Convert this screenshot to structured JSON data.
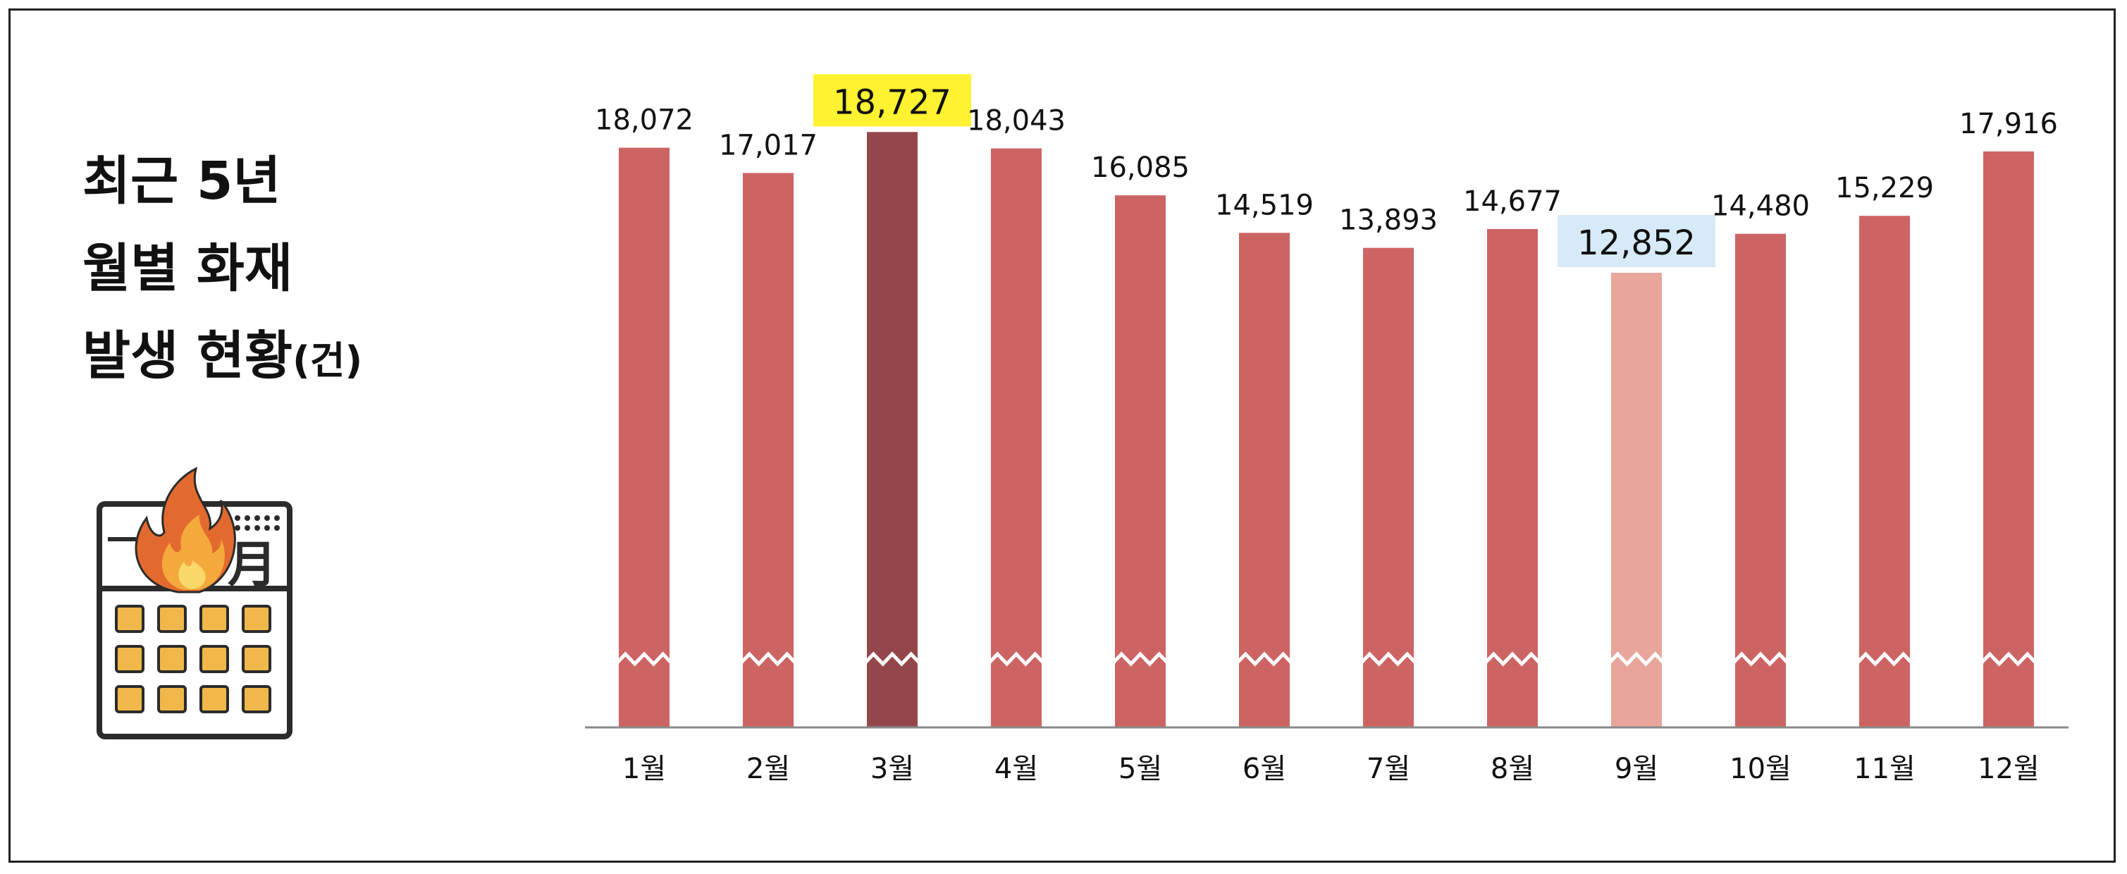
{
  "title": {
    "line1": "최근 5년",
    "line2": "월별 화재",
    "line3": "발생 현황",
    "unit": "(건)"
  },
  "icon": {
    "name": "calendar-fire-icon",
    "glyph": "月"
  },
  "chart_data": {
    "type": "bar",
    "title": "최근 5년 월별 화재 발생 현황(건)",
    "categories": [
      "1월",
      "2월",
      "3월",
      "4월",
      "5월",
      "6월",
      "7월",
      "8월",
      "9월",
      "10월",
      "11월",
      "12월"
    ],
    "values": [
      18072,
      17017,
      18727,
      18043,
      16085,
      14519,
      13893,
      14677,
      12852,
      14480,
      15229,
      17916
    ],
    "value_labels": [
      "18,072",
      "17,017",
      "18,727",
      "18,043",
      "16,085",
      "14,519",
      "13,893",
      "14,677",
      "12,852",
      "14,480",
      "15,229",
      "17,916"
    ],
    "axis_break": true,
    "ylim": [
      11000,
      19000
    ],
    "grid": false,
    "legend": "none",
    "highlight_max_index": 2,
    "highlight_min_index": 8,
    "colors": {
      "bar": "#cd6464",
      "bar_max": "#94474a",
      "bar_min": "#e8a59c",
      "max_label_bg": "#fff230",
      "min_label_bg": "#d6ebf7",
      "axis": "#8a8a8a"
    }
  }
}
